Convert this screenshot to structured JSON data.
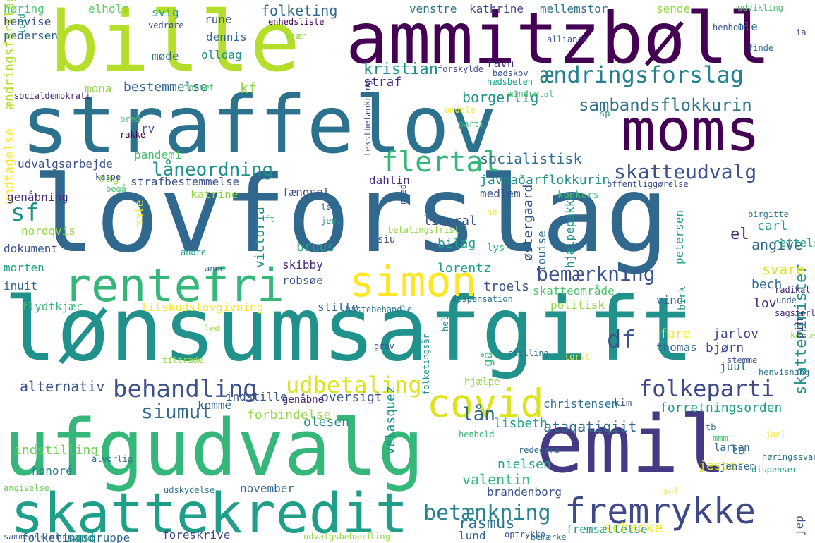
{
  "words": [
    "lovforslag",
    "lønsumsafgift",
    "straffelov",
    "bille",
    "ammitzbøll",
    "ufgudvalg",
    "emil",
    "moms",
    "skattekredit",
    "rentefri",
    "simon",
    "covid",
    "fremrykke",
    "ændringsforslag",
    "sambandsflokkurin",
    "flertal",
    "behandling",
    "udbetaling",
    "folkeparti",
    "skatteudvalg",
    "låneordning",
    "bemærkning",
    "siumut",
    "betænkning",
    "sf",
    "df",
    "kristian",
    "socialistisk",
    "javnaðarflokkurin",
    "straf",
    "borgerlig",
    "bestemmelse",
    "folketing",
    "kf",
    "lån",
    "valentin",
    "rasmus",
    "schacke",
    "angive",
    "alternativ",
    "ataqatigiit",
    "forbindelse",
    "skatteminister",
    "folketingsår",
    "fremsættelse",
    "brandenborg",
    "nielsen",
    "oversigt",
    "genåbne",
    "indstille",
    "komme",
    "honoré",
    "november",
    "indstilling",
    "olesen",
    "christensen",
    "forretningsorden",
    "kim",
    "lisbeth",
    "velasquez",
    "jesper",
    "la",
    "larsen",
    "jensen",
    "hjælpepakke",
    "petersen",
    "østergaard",
    "louise",
    "bilag",
    "liberal",
    "bruus",
    "lorentz",
    "troels",
    "victoria",
    "skibby",
    "robsøe",
    "svare",
    "bech",
    "skatteområde",
    "politisk",
    "vind",
    "birk",
    "lov",
    "jarlov",
    "fare",
    "thomas",
    "bjørn",
    "pihl",
    "juul",
    "gå",
    "carl",
    "rettelse",
    "el",
    "pedersen",
    "henvise",
    "høring",
    "elholm",
    "svig",
    "rune",
    "dennis",
    "møde",
    "olldag",
    "mona",
    "mellemstor",
    "kathrine",
    "venstre",
    "sende",
    "ole",
    "henhold",
    "alliance",
    "ravn",
    "bødskov",
    "forskylde",
    "mindretal",
    "undtagelse",
    "ændringsforslag",
    "rv",
    "pandemi",
    "katrine",
    "fængsel",
    "udvalgsarbejde",
    "genåbning",
    "dag",
    "strafbestemmelse",
    "nordqvis",
    "dokument",
    "morten",
    "inuit",
    "flydtkjær",
    "tilskudslovgivning",
    "stille",
    "hastebehandle",
    "dahlin",
    "medlem",
    "male",
    "lys",
    "konkurs",
    "offentliggørelse",
    "tekstbetænkning",
    "kaspe",
    "begå",
    "bred",
    "rakke",
    "enhedsliste",
    "vedrøre",
    "kjær",
    "forsæt",
    "told",
    "socialdemokrati",
    "udvikling",
    "ia",
    "finde",
    "parti",
    "omdele",
    "sp",
    "radikal",
    "unde",
    "sagsforløb",
    "dispensation",
    "stilling",
    "grov",
    "tiltræde",
    "stemme",
    "henvisning",
    "torst",
    "hjælpe",
    "folketingsgruppe",
    "sand",
    "sammensætning",
    "angivelse",
    "foreskrive",
    "udskydelse",
    "alvorlig",
    "optrykke",
    "lund",
    "bemærke",
    "udvalgsbehandling",
    "redegøre",
    "dispenser",
    "joel",
    "jep",
    "høringssvar",
    "anne",
    "andre",
    "betalingsfrist",
    "siu",
    "jens",
    "løse",
    "nb",
    "ft",
    "birgitte",
    "nfed",
    "henhold",
    "led",
    "snf",
    "konservativ",
    "tb",
    "mmm",
    "hele",
    "hædsbeten",
    "borgerlig"
  ]
}
